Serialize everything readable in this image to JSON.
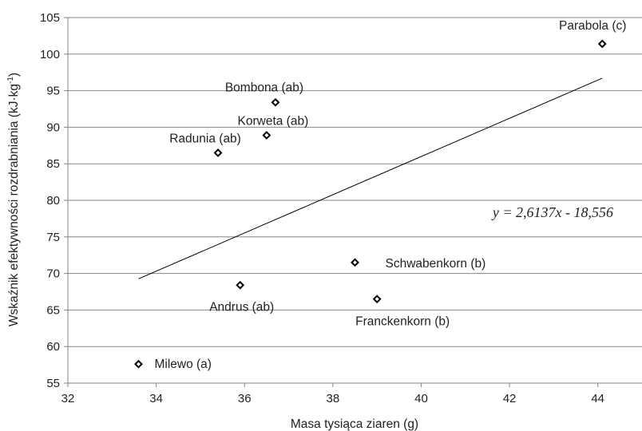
{
  "chart_data": {
    "type": "scatter",
    "xlabel": "Masa tysiąca ziaren (g)",
    "ylabel": "Wskaźnik efektywności rozdrabniania (kJ·kg",
    "ylabel_sup": "-1",
    "ylabel_tail": ")",
    "xlim": [
      32,
      45
    ],
    "ylim": [
      55,
      105
    ],
    "x_ticks": [
      "32",
      "34",
      "36",
      "38",
      "40",
      "42",
      "44"
    ],
    "y_ticks": [
      "55",
      "60",
      "65",
      "70",
      "75",
      "80",
      "85",
      "90",
      "95",
      "100",
      "105"
    ],
    "grid": "horizontal",
    "points": [
      {
        "label": "Milewo  (a)",
        "x": 33.6,
        "y": 57.6
      },
      {
        "label": "Andrus  (ab)",
        "x": 35.9,
        "y": 68.4
      },
      {
        "label": "Radunia (ab)",
        "x": 35.4,
        "y": 86.5
      },
      {
        "label": "Korweta (ab)",
        "x": 36.5,
        "y": 88.9
      },
      {
        "label": "Bombona (ab)",
        "x": 36.7,
        "y": 93.4
      },
      {
        "label": "Schwabenkorn (b)",
        "x": 38.5,
        "y": 71.5
      },
      {
        "label": "Franckenkorn  (b)",
        "x": 39.0,
        "y": 66.5
      },
      {
        "label": "Parabola (c)",
        "x": 44.1,
        "y": 101.4
      }
    ],
    "trendline": {
      "equation": "y = 2,6137x - 18,556",
      "slope": 2.6137,
      "intercept": -18.556,
      "x_from": 33.6,
      "x_to": 44.1
    },
    "colors": {
      "marker": "#000000",
      "grid": "#868686",
      "trendline": "#000000"
    }
  }
}
